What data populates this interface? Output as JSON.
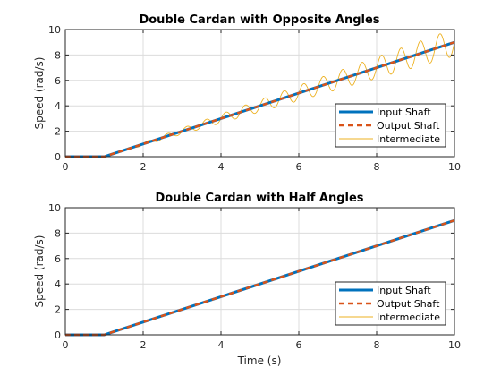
{
  "chart_data": [
    {
      "type": "line",
      "title": "Double Cardan with Opposite Angles",
      "xlabel": "",
      "ylabel": "Speed (rad/s)",
      "xlim": [
        0,
        10
      ],
      "ylim": [
        0,
        10
      ],
      "xticks": [
        0,
        2,
        4,
        6,
        8,
        10
      ],
      "yticks": [
        0,
        2,
        4,
        6,
        8,
        10
      ],
      "grid": true,
      "legend_position": "bottom-right",
      "intermediate_oscillation": {
        "amplitude_factor": 0.12,
        "frequency_hz": 1.0
      },
      "series": [
        {
          "name": "Input Shaft",
          "color": "#0072BD",
          "style": "solid",
          "x": [
            0,
            1,
            10
          ],
          "y": [
            0,
            0,
            9
          ]
        },
        {
          "name": "Output Shaft",
          "color": "#D95319",
          "style": "dashed",
          "x": [
            0,
            1,
            10
          ],
          "y": [
            0,
            0,
            9
          ]
        },
        {
          "name": "Intermediate",
          "color": "#EDB120",
          "style": "thin",
          "x": [
            0,
            1,
            10
          ],
          "y": [
            0,
            0,
            9
          ]
        }
      ]
    },
    {
      "type": "line",
      "title": "Double Cardan with Half Angles",
      "xlabel": "Time (s)",
      "ylabel": "Speed (rad/s)",
      "xlim": [
        0,
        10
      ],
      "ylim": [
        0,
        10
      ],
      "xticks": [
        0,
        2,
        4,
        6,
        8,
        10
      ],
      "yticks": [
        0,
        2,
        4,
        6,
        8,
        10
      ],
      "grid": true,
      "legend_position": "bottom-right",
      "intermediate_oscillation": {
        "amplitude_factor": 0.008,
        "frequency_hz": 1.0
      },
      "series": [
        {
          "name": "Input Shaft",
          "color": "#0072BD",
          "style": "solid",
          "x": [
            0,
            1,
            10
          ],
          "y": [
            0,
            0,
            9
          ]
        },
        {
          "name": "Output Shaft",
          "color": "#D95319",
          "style": "dashed",
          "x": [
            0,
            1,
            10
          ],
          "y": [
            0,
            0,
            9
          ]
        },
        {
          "name": "Intermediate",
          "color": "#EDB120",
          "style": "thin",
          "x": [
            0,
            1,
            10
          ],
          "y": [
            0,
            0,
            9
          ]
        }
      ]
    }
  ]
}
